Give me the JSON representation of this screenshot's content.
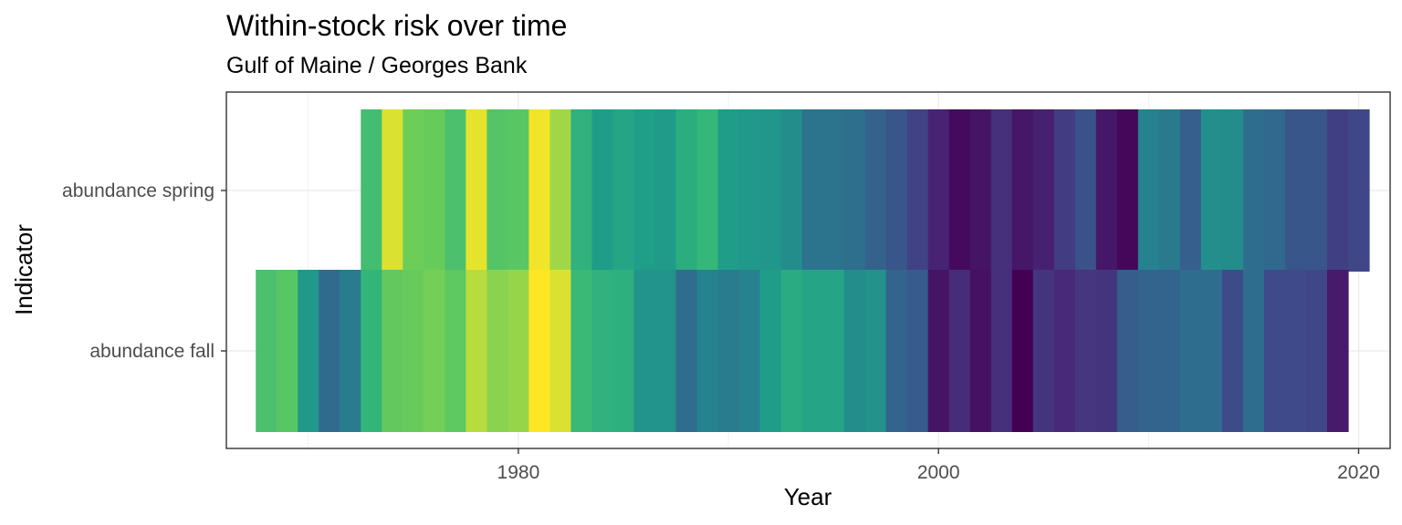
{
  "chart_data": {
    "type": "heatmap",
    "title": "Within-stock risk over time",
    "subtitle": "Gulf of Maine / Georges Bank",
    "xlabel": "Year",
    "ylabel": "Indicator",
    "x_ticks": [
      1980,
      2000,
      2020
    ],
    "xlim": [
      1966.1,
      2021.5
    ],
    "grid": true,
    "legend": "none",
    "colormap": "viridis",
    "value_range": [
      0,
      1
    ],
    "rows": [
      {
        "indicator": "abundance spring",
        "years": [
          1973,
          1974,
          1975,
          1976,
          1977,
          1978,
          1979,
          1980,
          1981,
          1982,
          1983,
          1984,
          1985,
          1986,
          1987,
          1988,
          1989,
          1990,
          1991,
          1992,
          1993,
          1994,
          1995,
          1996,
          1997,
          1998,
          1999,
          2000,
          2001,
          2002,
          2003,
          2004,
          2005,
          2006,
          2007,
          2008,
          2009,
          2010,
          2011,
          2012,
          2013,
          2014,
          2015,
          2016,
          2017,
          2018,
          2019,
          2020
        ],
        "values": [
          0.78,
          0.97,
          0.87,
          0.86,
          0.8,
          0.98,
          0.82,
          0.83,
          0.99,
          0.92,
          0.72,
          0.62,
          0.66,
          0.63,
          0.61,
          0.7,
          0.75,
          0.62,
          0.6,
          0.59,
          0.55,
          0.43,
          0.43,
          0.41,
          0.35,
          0.3,
          0.22,
          0.11,
          0.03,
          0.06,
          0.15,
          0.07,
          0.1,
          0.2,
          0.28,
          0.07,
          0.02,
          0.5,
          0.46,
          0.34,
          0.56,
          0.55,
          0.4,
          0.38,
          0.3,
          0.3,
          0.21,
          0.24
        ]
      },
      {
        "indicator": "abundance fall",
        "years": [
          1968,
          1969,
          1970,
          1971,
          1972,
          1973,
          1974,
          1975,
          1976,
          1977,
          1978,
          1979,
          1980,
          1981,
          1982,
          1983,
          1984,
          1985,
          1986,
          1987,
          1988,
          1989,
          1990,
          1991,
          1992,
          1993,
          1994,
          1995,
          1996,
          1997,
          1998,
          1999,
          2000,
          2001,
          2002,
          2003,
          2004,
          2005,
          2006,
          2007,
          2008,
          2009,
          2010,
          2011,
          2012,
          2013,
          2014,
          2015,
          2016,
          2017,
          2018,
          2019
        ],
        "values": [
          0.8,
          0.83,
          0.6,
          0.39,
          0.47,
          0.74,
          0.85,
          0.86,
          0.88,
          0.84,
          0.94,
          0.9,
          0.91,
          1.0,
          0.97,
          0.76,
          0.72,
          0.71,
          0.58,
          0.58,
          0.4,
          0.5,
          0.47,
          0.5,
          0.62,
          0.69,
          0.66,
          0.66,
          0.55,
          0.57,
          0.36,
          0.32,
          0.06,
          0.14,
          0.05,
          0.15,
          0.0,
          0.17,
          0.13,
          0.18,
          0.17,
          0.33,
          0.36,
          0.36,
          0.4,
          0.4,
          0.26,
          0.4,
          0.25,
          0.25,
          0.24,
          0.08
        ]
      }
    ]
  }
}
